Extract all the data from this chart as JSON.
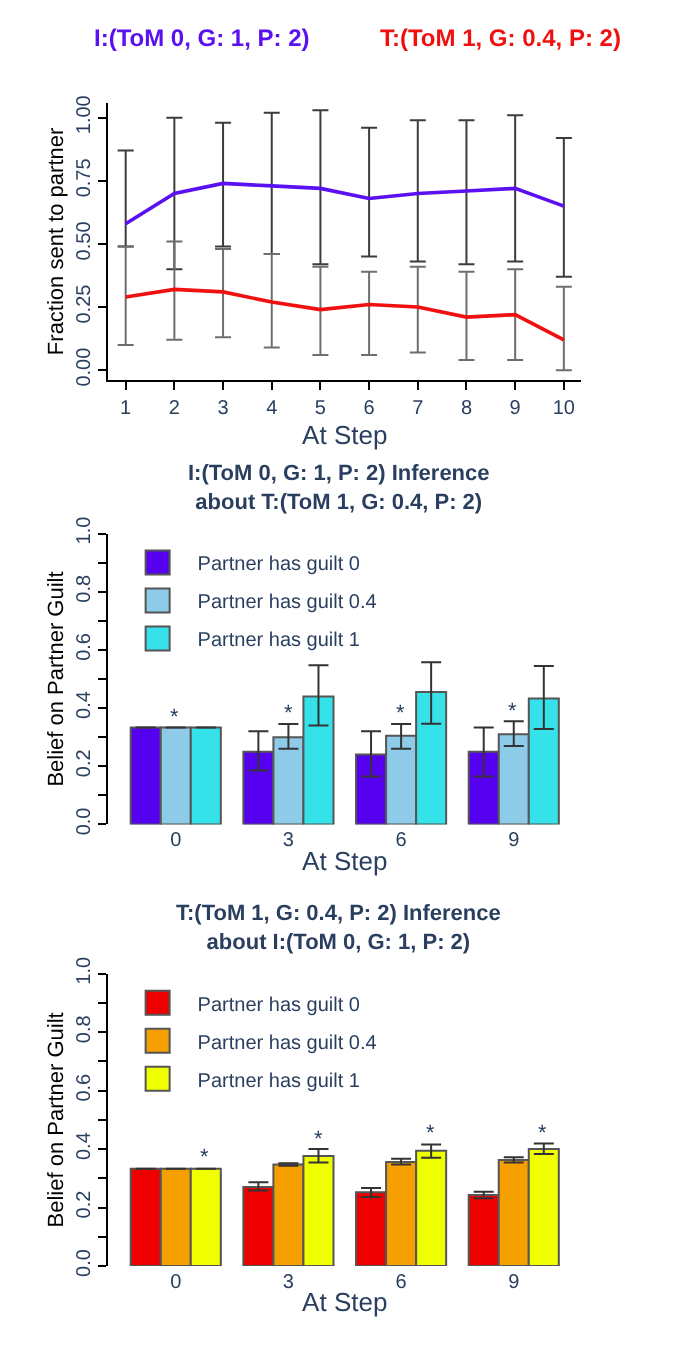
{
  "chart_data": [
    {
      "type": "line",
      "xlabel": "At Step",
      "ylabel": "Fraction sent to partner",
      "x": [
        1,
        2,
        3,
        4,
        5,
        6,
        7,
        8,
        9,
        10
      ],
      "xlim": [
        0.64,
        10.36
      ],
      "xticks": [
        1,
        2,
        3,
        4,
        5,
        6,
        7,
        8,
        9,
        10
      ],
      "ylim": [
        -0.04,
        1.06
      ],
      "yticks": [
        {
          "value": 0,
          "label": "0.00"
        },
        0.25,
        {
          "value": 0.5,
          "label": "0.50"
        },
        0.75,
        {
          "value": 1,
          "label": "1.00"
        }
      ],
      "legend": false,
      "marker": "none",
      "line_style": "solid",
      "series": [
        {
          "name": "I:(ToM 0, G: 1, P: 2)",
          "color": "#5a10f0",
          "values": [
            0.58,
            0.7,
            0.74,
            0.73,
            0.72,
            0.68,
            0.7,
            0.71,
            0.72,
            0.65
          ],
          "errors": [
            [
              0.49,
              0.87
            ],
            [
              0.4,
              1.0
            ],
            [
              0.49,
              0.98
            ],
            [
              0.46,
              1.02
            ],
            [
              0.42,
              1.03
            ],
            [
              0.45,
              0.96
            ],
            [
              0.43,
              0.99
            ],
            [
              0.42,
              0.99
            ],
            [
              0.43,
              1.01
            ],
            [
              0.37,
              0.92
            ]
          ]
        },
        {
          "name": "T:(ToM 1, G: 0.4, P: 2)",
          "color": "#f01010",
          "values": [
            0.29,
            0.32,
            0.31,
            0.27,
            0.24,
            0.26,
            0.25,
            0.21,
            0.22,
            0.12
          ],
          "errors": [
            [
              0.1,
              0.49
            ],
            [
              0.12,
              0.51
            ],
            [
              0.13,
              0.48
            ],
            [
              0.09,
              0.46
            ],
            [
              0.06,
              0.41
            ],
            [
              0.06,
              0.39
            ],
            [
              0.07,
              0.41
            ],
            [
              0.04,
              0.39
            ],
            [
              0.04,
              0.4
            ],
            [
              0.0,
              0.33
            ]
          ]
        }
      ]
    },
    {
      "type": "bar",
      "title": "I:(ToM 0, G: 1, P: 2) Inference\nabout T:(ToM 1, G: 0.4, P: 2)",
      "xlabel": "At Step",
      "ylabel": "Belief on Partner Guilt",
      "categories": [
        "0",
        "3",
        "6",
        "9"
      ],
      "ylim": [
        0,
        1.0
      ],
      "yticks": [
        {
          "value": 0,
          "label": "0.0"
        },
        {
          "value": 0.1,
          "label": null
        },
        0.2,
        {
          "value": 0.3,
          "label": null
        },
        0.4,
        {
          "value": 0.5,
          "label": null
        },
        0.6,
        {
          "value": 0.7,
          "label": null
        },
        0.8,
        {
          "value": 0.9,
          "label": null
        },
        {
          "value": 1,
          "label": "1.0"
        }
      ],
      "legend": "top left",
      "series": [
        {
          "name": "Partner has guilt 0",
          "color": "#5500ee",
          "values": [
            0.333,
            0.25,
            0.24,
            0.25
          ],
          "errors": [
            null,
            [
              0.185,
              0.32
            ],
            [
              0.165,
              0.32
            ],
            [
              0.165,
              0.333
            ]
          ]
        },
        {
          "name": "Partner has guilt 0.4",
          "color": "#8ecbe8",
          "values": [
            0.333,
            0.3,
            0.305,
            0.31
          ],
          "errors": [
            null,
            [
              0.26,
              0.345
            ],
            [
              0.26,
              0.345
            ],
            [
              0.27,
              0.355
            ]
          ],
          "value_labels": [
            "*",
            "*",
            "*",
            "*"
          ]
        },
        {
          "name": "Partner has guilt 1",
          "color": "#36e2ea",
          "values": [
            0.333,
            0.44,
            0.455,
            0.433
          ],
          "errors": [
            null,
            [
              0.34,
              0.547
            ],
            [
              0.346,
              0.558
            ],
            [
              0.328,
              0.545
            ]
          ]
        }
      ]
    },
    {
      "type": "bar",
      "title": "T:(ToM 1, G: 0.4, P: 2) Inference\nabout I:(ToM 0, G: 1, P: 2)",
      "xlabel": "At Step",
      "ylabel": "Belief on Partner Guilt",
      "categories": [
        "0",
        "3",
        "6",
        "9"
      ],
      "ylim": [
        0,
        1.0
      ],
      "yticks": [
        {
          "value": 0,
          "label": "0.0"
        },
        {
          "value": 0.1,
          "label": null
        },
        0.2,
        {
          "value": 0.3,
          "label": null
        },
        0.4,
        {
          "value": 0.5,
          "label": null
        },
        0.6,
        {
          "value": 0.7,
          "label": null
        },
        0.8,
        {
          "value": 0.9,
          "label": null
        },
        {
          "value": 1,
          "label": "1.0"
        }
      ],
      "legend": "top left",
      "series": [
        {
          "name": "Partner has guilt 0",
          "color": "#ee0000",
          "values": [
            0.333,
            0.27,
            0.252,
            0.243
          ],
          "errors": [
            null,
            [
              0.258,
              0.287
            ],
            [
              0.236,
              0.267
            ],
            [
              0.232,
              0.254
            ]
          ]
        },
        {
          "name": "Partner has guilt 0.4",
          "color": "#f5a000",
          "values": [
            0.333,
            0.347,
            0.356,
            0.363
          ],
          "errors": [
            null,
            [
              0.343,
              0.352
            ],
            [
              0.347,
              0.367
            ],
            [
              0.354,
              0.372
            ]
          ]
        },
        {
          "name": "Partner has guilt 1",
          "color": "#f0ff00",
          "values": [
            0.333,
            0.376,
            0.394,
            0.4
          ],
          "errors": [
            null,
            [
              0.354,
              0.4
            ],
            [
              0.37,
              0.416
            ],
            [
              0.383,
              0.419
            ]
          ],
          "value_labels": [
            "*",
            "*",
            "*",
            "*"
          ]
        }
      ]
    }
  ]
}
